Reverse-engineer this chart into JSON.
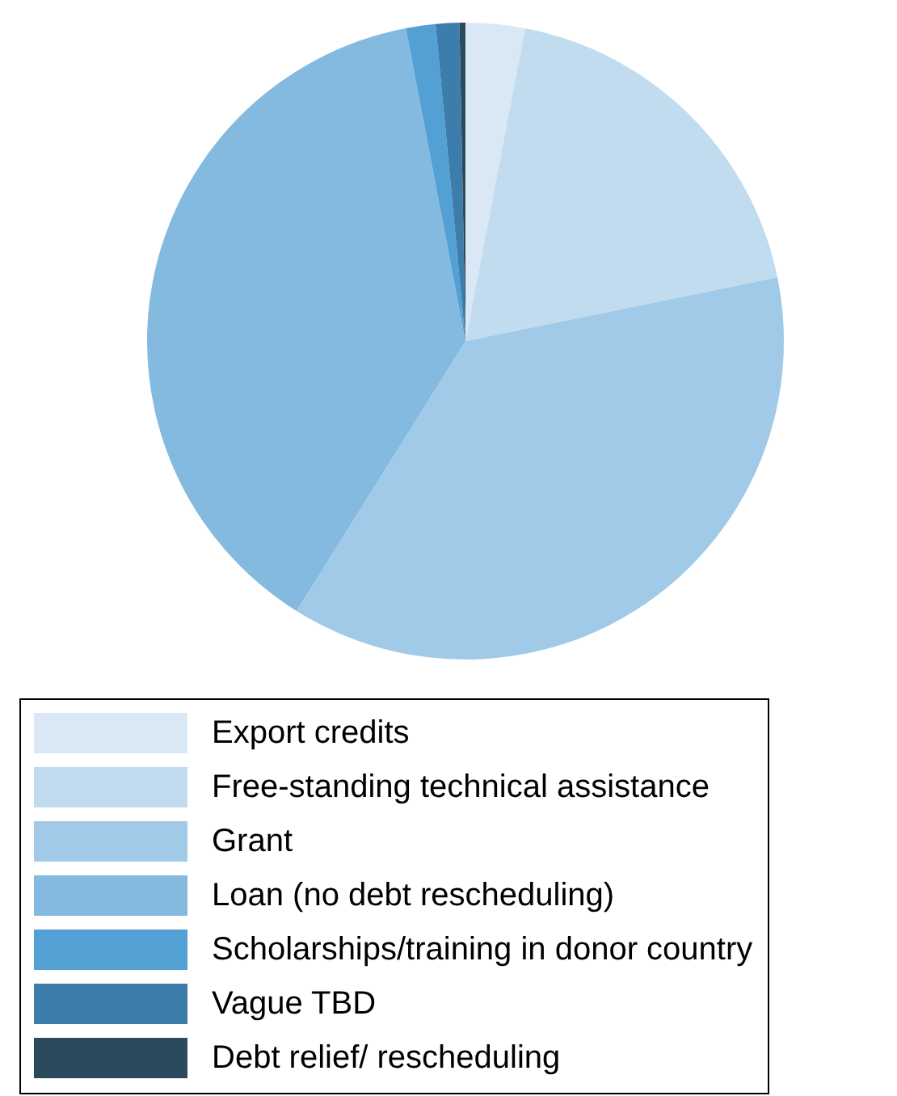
{
  "chart_data": {
    "type": "pie",
    "categories": [
      "Export credits",
      "Free-standing technical assistance",
      "Grant",
      "Loan (no debt rescheduling)",
      "Scholarships/training in donor country",
      "Vague TBD",
      "Debt relief/ rescheduling"
    ],
    "values": [
      3,
      18.8,
      37.1,
      38.1,
      1.5,
      1.2,
      0.3
    ],
    "colors": [
      "#dae8f5",
      "#c2dcef",
      "#a0cae8",
      "#84badf",
      "#53a0d5",
      "#3d7dab",
      "#2c4a5e"
    ],
    "legend": "bottom"
  }
}
